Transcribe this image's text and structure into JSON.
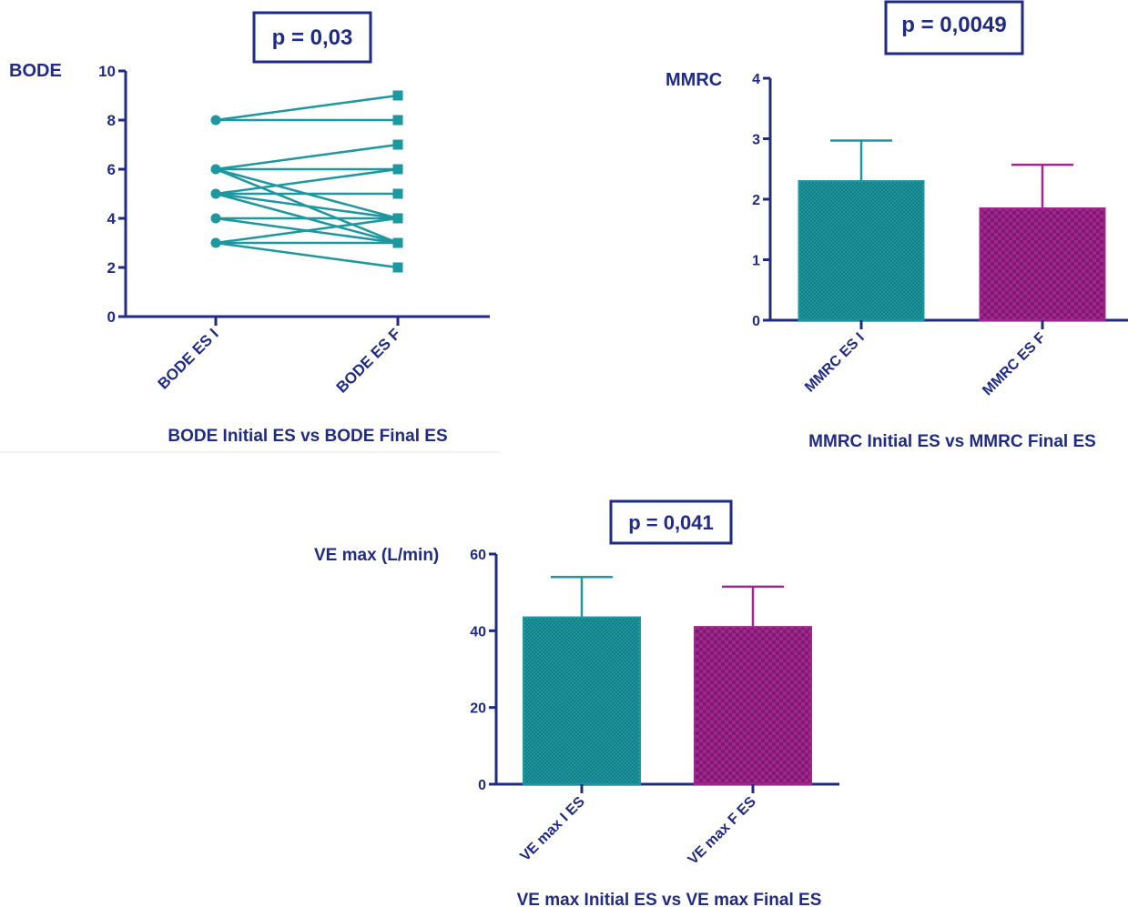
{
  "colors": {
    "axis": "#1f2b86",
    "teal": "#1d97a0",
    "magenta": "#a1268e"
  },
  "chart_data": [
    {
      "type": "line",
      "ylabel": "BODE",
      "xlabel": "BODE Initial ES vs BODE Final ES",
      "p_value": "p = 0,03",
      "categories": [
        "BODE ES I",
        "BODE ES F"
      ],
      "ylim": [
        0,
        10
      ],
      "yticks": [
        0,
        2,
        4,
        6,
        8,
        10
      ],
      "series_color": "#1d97a0",
      "pairs": [
        [
          8,
          9
        ],
        [
          8,
          8
        ],
        [
          6,
          7
        ],
        [
          6,
          6
        ],
        [
          6,
          4
        ],
        [
          6,
          3
        ],
        [
          5,
          6
        ],
        [
          5,
          5
        ],
        [
          5,
          4
        ],
        [
          5,
          3
        ],
        [
          4,
          4
        ],
        [
          4,
          3
        ],
        [
          3,
          4
        ],
        [
          3,
          3
        ],
        [
          3,
          2
        ]
      ]
    },
    {
      "type": "bar",
      "ylabel": "MMRC",
      "xlabel": "MMRC Initial ES vs MMRC Final ES",
      "p_value": "p = 0,0049",
      "categories": [
        "MMRC ES I",
        "MMRC ES F"
      ],
      "values": [
        2.3,
        1.85
      ],
      "errors": [
        0.67,
        0.72
      ],
      "colors": [
        "#1d97a0",
        "#a1268e"
      ],
      "ylim": [
        0,
        4
      ],
      "yticks": [
        0,
        1,
        2,
        3,
        4
      ]
    },
    {
      "type": "bar",
      "ylabel": "VE max (L/min)",
      "xlabel": "VE max Initial ES vs VE max Final ES",
      "p_value": "p = 0,041",
      "categories": [
        "VE max I ES",
        "VE max F ES"
      ],
      "values": [
        43.5,
        41
      ],
      "errors": [
        10.5,
        10.5
      ],
      "colors": [
        "#1d97a0",
        "#a1268e"
      ],
      "ylim": [
        0,
        60
      ],
      "yticks": [
        0,
        20,
        40,
        60
      ]
    }
  ]
}
